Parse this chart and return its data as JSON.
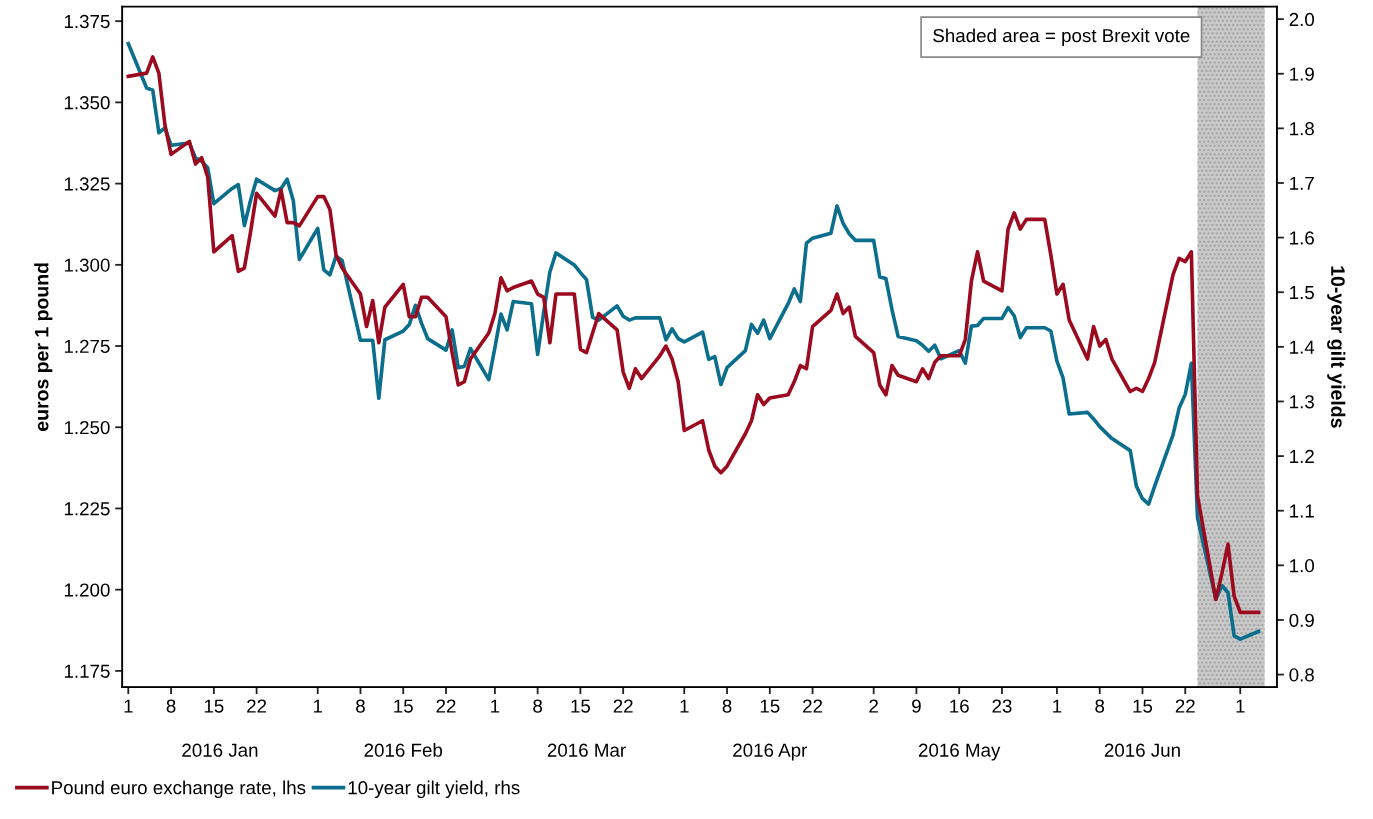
{
  "chart_data": {
    "type": "line",
    "ylabel": "euros per 1 pound",
    "y2label": "10-year gilt yields",
    "annotations": [
      "Shaded area = post Brexit vote"
    ],
    "x": [
      "2016-01-01",
      "2016-01-04",
      "2016-01-05",
      "2016-01-06",
      "2016-01-07",
      "2016-01-08",
      "2016-01-11",
      "2016-01-12",
      "2016-01-13",
      "2016-01-14",
      "2016-01-15",
      "2016-01-18",
      "2016-01-19",
      "2016-01-20",
      "2016-01-21",
      "2016-01-22",
      "2016-01-25",
      "2016-01-26",
      "2016-01-27",
      "2016-01-28",
      "2016-01-29",
      "2016-02-01",
      "2016-02-02",
      "2016-02-03",
      "2016-02-04",
      "2016-02-05",
      "2016-02-08",
      "2016-02-09",
      "2016-02-10",
      "2016-02-11",
      "2016-02-12",
      "2016-02-15",
      "2016-02-16",
      "2016-02-17",
      "2016-02-18",
      "2016-02-19",
      "2016-02-22",
      "2016-02-23",
      "2016-02-24",
      "2016-02-25",
      "2016-02-26",
      "2016-02-29",
      "2016-03-01",
      "2016-03-02",
      "2016-03-03",
      "2016-03-04",
      "2016-03-07",
      "2016-03-08",
      "2016-03-09",
      "2016-03-10",
      "2016-03-11",
      "2016-03-14",
      "2016-03-15",
      "2016-03-16",
      "2016-03-17",
      "2016-03-18",
      "2016-03-21",
      "2016-03-22",
      "2016-03-23",
      "2016-03-24",
      "2016-03-25",
      "2016-03-28",
      "2016-03-29",
      "2016-03-30",
      "2016-03-31",
      "2016-04-01",
      "2016-04-04",
      "2016-04-05",
      "2016-04-06",
      "2016-04-07",
      "2016-04-08",
      "2016-04-11",
      "2016-04-12",
      "2016-04-13",
      "2016-04-14",
      "2016-04-15",
      "2016-04-18",
      "2016-04-19",
      "2016-04-20",
      "2016-04-21",
      "2016-04-22",
      "2016-04-25",
      "2016-04-26",
      "2016-04-27",
      "2016-04-28",
      "2016-04-29",
      "2016-05-02",
      "2016-05-03",
      "2016-05-04",
      "2016-05-05",
      "2016-05-06",
      "2016-05-09",
      "2016-05-10",
      "2016-05-11",
      "2016-05-12",
      "2016-05-13",
      "2016-05-16",
      "2016-05-17",
      "2016-05-18",
      "2016-05-19",
      "2016-05-20",
      "2016-05-23",
      "2016-05-24",
      "2016-05-25",
      "2016-05-26",
      "2016-05-27",
      "2016-05-30",
      "2016-05-31",
      "2016-06-01",
      "2016-06-02",
      "2016-06-03",
      "2016-06-06",
      "2016-06-07",
      "2016-06-08",
      "2016-06-09",
      "2016-06-10",
      "2016-06-13",
      "2016-06-14",
      "2016-06-15",
      "2016-06-16",
      "2016-06-17",
      "2016-06-20",
      "2016-06-21",
      "2016-06-22",
      "2016-06-23",
      "2016-06-24",
      "2016-06-27",
      "2016-06-28",
      "2016-06-29",
      "2016-06-30",
      "2016-07-01",
      "2016-07-04"
    ],
    "series": [
      {
        "name": "Pound euro exchange rate, lhs",
        "color": "#9b0a1e",
        "values": [
          1.358,
          1.359,
          1.364,
          1.359,
          1.343,
          1.334,
          1.338,
          1.331,
          1.333,
          1.327,
          1.304,
          1.309,
          1.298,
          1.299,
          1.31,
          1.322,
          1.315,
          1.323,
          1.313,
          1.313,
          1.312,
          1.321,
          1.321,
          1.317,
          1.303,
          1.299,
          1.291,
          1.281,
          1.289,
          1.276,
          1.287,
          1.294,
          1.284,
          1.284,
          1.29,
          1.29,
          1.284,
          1.273,
          1.263,
          1.264,
          1.271,
          1.279,
          1.285,
          1.296,
          1.292,
          1.293,
          1.295,
          1.291,
          1.29,
          1.276,
          1.291,
          1.291,
          1.274,
          1.273,
          1.279,
          1.285,
          1.28,
          1.267,
          1.262,
          1.268,
          1.265,
          1.272,
          1.275,
          1.271,
          1.264,
          1.249,
          1.252,
          1.243,
          1.238,
          1.236,
          1.238,
          1.248,
          1.252,
          1.26,
          1.257,
          1.259,
          1.26,
          1.264,
          1.269,
          1.268,
          1.281,
          1.286,
          1.291,
          1.285,
          1.287,
          1.278,
          1.273,
          1.263,
          1.26,
          1.269,
          1.266,
          1.264,
          1.268,
          1.265,
          1.27,
          1.272,
          1.272,
          1.277,
          1.295,
          1.304,
          1.295,
          1.292,
          1.311,
          1.316,
          1.311,
          1.314,
          1.314,
          1.303,
          1.291,
          1.294,
          1.283,
          1.271,
          1.281,
          1.275,
          1.277,
          1.271,
          1.261,
          1.262,
          1.261,
          1.265,
          1.27,
          1.297,
          1.302,
          1.301,
          1.304,
          1.229,
          1.197,
          1.205,
          1.214,
          1.198,
          1.193,
          1.193
        ]
      },
      {
        "name": "10-year gilt yield, rhs",
        "color": "#0a6e8c",
        "axis": "y2",
        "values": [
          1.955,
          1.874,
          1.87,
          1.792,
          1.801,
          1.769,
          1.773,
          1.746,
          1.74,
          1.728,
          1.662,
          1.69,
          1.697,
          1.622,
          1.668,
          1.707,
          1.686,
          1.69,
          1.707,
          1.668,
          1.56,
          1.617,
          1.541,
          1.532,
          1.566,
          1.558,
          1.412,
          1.412,
          1.412,
          1.306,
          1.413,
          1.429,
          1.441,
          1.476,
          1.443,
          1.415,
          1.394,
          1.431,
          1.362,
          1.364,
          1.397,
          1.34,
          1.398,
          1.46,
          1.431,
          1.483,
          1.479,
          1.386,
          1.464,
          1.537,
          1.572,
          1.55,
          1.536,
          1.523,
          1.454,
          1.449,
          1.475,
          1.456,
          1.449,
          1.453,
          1.453,
          1.453,
          1.413,
          1.433,
          1.415,
          1.409,
          1.427,
          1.377,
          1.382,
          1.331,
          1.362,
          1.393,
          1.441,
          1.425,
          1.449,
          1.415,
          1.479,
          1.506,
          1.483,
          1.59,
          1.599,
          1.608,
          1.658,
          1.626,
          1.607,
          1.595,
          1.595,
          1.528,
          1.525,
          1.468,
          1.419,
          1.411,
          1.403,
          1.392,
          1.403,
          1.378,
          1.393,
          1.37,
          1.438,
          1.439,
          1.452,
          1.452,
          1.472,
          1.457,
          1.417,
          1.435,
          1.435,
          1.429,
          1.374,
          1.343,
          1.277,
          1.28,
          1.268,
          1.254,
          1.243,
          1.232,
          1.21,
          1.145,
          1.122,
          1.112,
          1.145,
          1.239,
          1.288,
          1.313,
          1.37,
          1.088,
          0.938,
          0.963,
          0.95,
          0.871,
          0.865,
          0.879
        ]
      }
    ],
    "xlim": [
      "2015-12-31",
      "2016-07-07"
    ],
    "xticks": [
      {
        "value": "2016-01-01",
        "label": "1"
      },
      {
        "value": "2016-01-08",
        "label": "8"
      },
      {
        "value": "2016-01-15",
        "label": "15"
      },
      {
        "value": "2016-01-22",
        "label": "22"
      },
      {
        "value": "2016-02-01",
        "label": "1"
      },
      {
        "value": "2016-02-08",
        "label": "8"
      },
      {
        "value": "2016-02-15",
        "label": "15"
      },
      {
        "value": "2016-02-22",
        "label": "22"
      },
      {
        "value": "2016-03-01",
        "label": "1"
      },
      {
        "value": "2016-03-08",
        "label": "8"
      },
      {
        "value": "2016-03-15",
        "label": "15"
      },
      {
        "value": "2016-03-22",
        "label": "22"
      },
      {
        "value": "2016-04-01",
        "label": "1"
      },
      {
        "value": "2016-04-08",
        "label": "8"
      },
      {
        "value": "2016-04-15",
        "label": "15"
      },
      {
        "value": "2016-04-22",
        "label": "22"
      },
      {
        "value": "2016-05-02",
        "label": "2"
      },
      {
        "value": "2016-05-09",
        "label": "9"
      },
      {
        "value": "2016-05-16",
        "label": "16"
      },
      {
        "value": "2016-05-23",
        "label": "23"
      },
      {
        "value": "2016-06-01",
        "label": "1"
      },
      {
        "value": "2016-06-08",
        "label": "8"
      },
      {
        "value": "2016-06-15",
        "label": "15"
      },
      {
        "value": "2016-06-22",
        "label": "22"
      },
      {
        "value": "2016-07-01",
        "label": "1"
      }
    ],
    "x2lim": [
      "2015-12-31",
      "2016-07-07"
    ],
    "x2ticks": [
      {
        "value": "2016-01-16",
        "label": "2016 Jan"
      },
      {
        "value": "2016-02-15",
        "label": "2016 Feb"
      },
      {
        "value": "2016-03-16",
        "label": "2016 Mar"
      },
      {
        "value": "2016-04-15",
        "label": "2016 Apr"
      },
      {
        "value": "2016-05-16",
        "label": "2016 May"
      },
      {
        "value": "2016-06-15",
        "label": "2016 Jun"
      }
    ],
    "ylim": [
      1.17,
      1.3795
    ],
    "yticks": [
      {
        "value": 1.175,
        "label": "1.175"
      },
      {
        "value": 1.2,
        "label": "1.200"
      },
      {
        "value": 1.225,
        "label": "1.225"
      },
      {
        "value": 1.25,
        "label": "1.250"
      },
      {
        "value": 1.275,
        "label": "1.275"
      },
      {
        "value": 1.3,
        "label": "1.300"
      },
      {
        "value": 1.325,
        "label": "1.325"
      },
      {
        "value": 1.35,
        "label": "1.350"
      },
      {
        "value": 1.375,
        "label": "1.375"
      }
    ],
    "y2lim": [
      0.777,
      2.023
    ],
    "y2ticks": [
      0.8,
      0.9,
      {
        "value": 1.0,
        "label": "1.0"
      },
      1.1,
      1.2,
      1.3,
      1.4,
      1.5,
      1.6,
      1.7,
      1.8,
      1.9,
      {
        "value": 2.0,
        "label": "2.0"
      }
    ],
    "bands": [
      {
        "axis": "x",
        "from": "2016-06-24",
        "to": "2016-07-05",
        "color": "#c8c8c8"
      }
    ],
    "grid": false,
    "legend": "bottom left",
    "marker": "none",
    "line_style": "solid"
  }
}
